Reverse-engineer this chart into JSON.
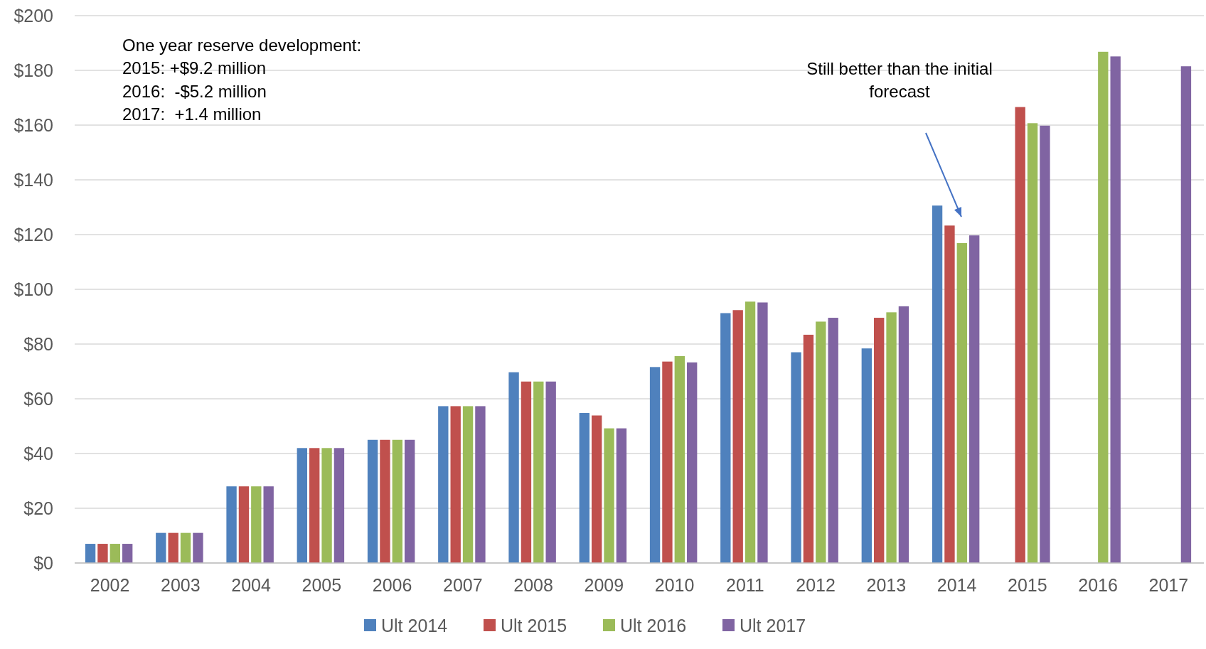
{
  "chart_data": {
    "type": "bar",
    "categories": [
      "2002",
      "2003",
      "2004",
      "2005",
      "2006",
      "2007",
      "2008",
      "2009",
      "2010",
      "2011",
      "2012",
      "2013",
      "2014",
      "2015",
      "2016",
      "2017"
    ],
    "series": [
      {
        "name": "Ult 2014",
        "color": "#4f81bd",
        "values": [
          7,
          11,
          28,
          42,
          45,
          57.3,
          69.7,
          54.8,
          71.6,
          91.3,
          77,
          78.4,
          130.6,
          null,
          null,
          null
        ]
      },
      {
        "name": "Ult 2015",
        "color": "#c0504d",
        "values": [
          7,
          11,
          28,
          42,
          45,
          57.3,
          66.3,
          53.9,
          73.6,
          92.4,
          83.4,
          89.6,
          123.3,
          166.6,
          null,
          null
        ]
      },
      {
        "name": "Ult 2016",
        "color": "#9bbb59",
        "values": [
          7,
          11,
          28,
          42,
          45,
          57.3,
          66.3,
          49.2,
          75.6,
          95.5,
          88.2,
          91.6,
          116.9,
          160.7,
          186.8,
          null
        ]
      },
      {
        "name": "Ult 2017",
        "color": "#8064a2",
        "values": [
          7,
          11,
          28,
          42,
          45,
          57.3,
          66.3,
          49.2,
          73.3,
          95.2,
          89.6,
          93.8,
          119.7,
          159.8,
          185.1,
          181.5
        ]
      }
    ],
    "ylim": [
      0,
      200
    ],
    "yticks": [
      {
        "value": 0,
        "label": "$0"
      },
      {
        "value": 20,
        "label": "$20"
      },
      {
        "value": 40,
        "label": "$40"
      },
      {
        "value": 60,
        "label": "$60"
      },
      {
        "value": 80,
        "label": "$80"
      },
      {
        "value": 100,
        "label": "$100"
      },
      {
        "value": 120,
        "label": "$120"
      },
      {
        "value": 140,
        "label": "$140"
      },
      {
        "value": 160,
        "label": "$160"
      },
      {
        "value": 180,
        "label": "$180"
      },
      {
        "value": 200,
        "label": "$200"
      }
    ],
    "grid": "y",
    "legend": "bottom",
    "annotations": [
      "One year reserve development:\n2015: +$9.2 million\n2016:  -$5.2 million\n2017:  +1.4 million",
      "Still better than the initial\nforecast"
    ]
  }
}
